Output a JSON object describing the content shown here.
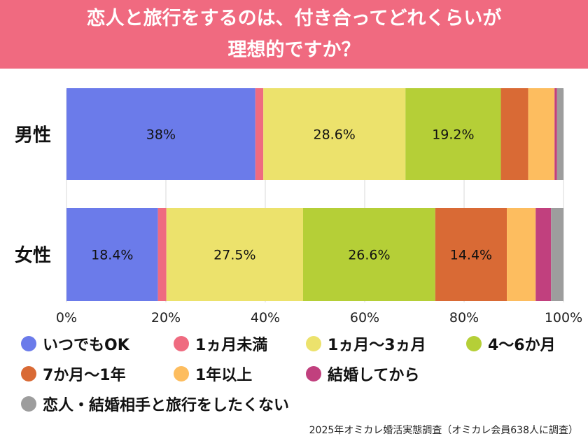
{
  "title_line1": "恋人と旅行をするのは、付き合ってどれくらいが",
  "title_line2": "理想的ですか？",
  "source": "2025年オミカレ婚活実態調査（オミカレ会員638人に調査）",
  "chart_data": {
    "type": "bar",
    "orientation": "horizontal-stacked-100",
    "categories": [
      "男性",
      "女性"
    ],
    "series": [
      {
        "name": "いつでもOK",
        "color": "#6b7bea",
        "values": [
          38.0,
          18.4
        ]
      },
      {
        "name": "1ヵ月未満",
        "color": "#ef6b80",
        "values": [
          1.6,
          1.7
        ]
      },
      {
        "name": "1ヵ月〜3ヵ月",
        "color": "#ece26c",
        "values": [
          28.6,
          27.5
        ]
      },
      {
        "name": "4〜6か月",
        "color": "#b5cf37",
        "values": [
          19.2,
          26.6
        ]
      },
      {
        "name": "7か月〜1年",
        "color": "#d96a35",
        "values": [
          5.5,
          14.4
        ]
      },
      {
        "name": "1年以上",
        "color": "#fdbd5f",
        "values": [
          5.3,
          5.8
        ]
      },
      {
        "name": "結婚してから",
        "color": "#c1407e",
        "values": [
          0.5,
          3.1
        ]
      },
      {
        "name": "恋人・結婚相手と旅行をしたくない",
        "color": "#9d9d9d",
        "values": [
          1.3,
          2.5
        ]
      }
    ],
    "data_labels": [
      {
        "series": 0,
        "category": 0,
        "text": "38%"
      },
      {
        "series": 2,
        "category": 0,
        "text": "28.6%"
      },
      {
        "series": 3,
        "category": 0,
        "text": "19.2%"
      },
      {
        "series": 0,
        "category": 1,
        "text": "18.4%"
      },
      {
        "series": 2,
        "category": 1,
        "text": "27.5%"
      },
      {
        "series": 3,
        "category": 1,
        "text": "26.6%"
      },
      {
        "series": 4,
        "category": 1,
        "text": "14.4%"
      }
    ],
    "xlim": [
      0,
      100
    ],
    "x_ticks": [
      "0%",
      "20%",
      "40%",
      "60%",
      "80%",
      "100%"
    ],
    "grid": true,
    "legend_position": "bottom"
  }
}
